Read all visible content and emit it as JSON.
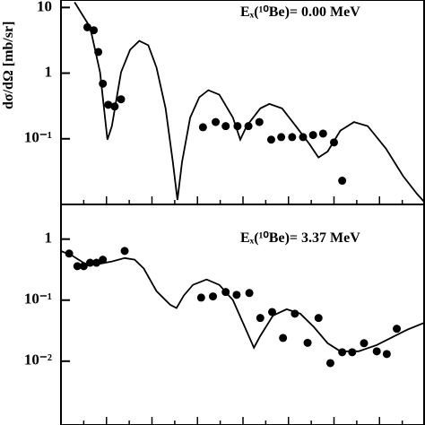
{
  "y_label": "dσ/dΩ [mb/sr]",
  "chart_data": [
    {
      "type": "scatter",
      "log_y": true,
      "color": "#000000",
      "annotation": "Eₓ(¹⁰Be)= 0.00 MeV",
      "xlim": [
        0,
        40
      ],
      "xticks": [
        0,
        2.5,
        5,
        7.5,
        10,
        12.5,
        15,
        17.5,
        20,
        22.5,
        25,
        27.5,
        30,
        32.5,
        35,
        37.5,
        40
      ],
      "ylim": [
        0.01,
        13
      ],
      "yticks": [
        {
          "value": 10,
          "label": "10"
        },
        {
          "value": 1,
          "label": "1"
        },
        {
          "value": 0.1,
          "label": "10⁻¹"
        }
      ],
      "x": [
        2.9,
        3.6,
        4.1,
        4.6,
        5.2,
        5.9,
        6.6,
        15.6,
        17.0,
        18.1,
        19.4,
        20.6,
        21.8,
        23.1,
        24.2,
        25.4,
        26.6,
        27.7,
        28.8,
        30.0,
        30.9
      ],
      "values": [
        5.0,
        4.5,
        2.1,
        0.69,
        0.33,
        0.31,
        0.4,
        0.15,
        0.18,
        0.156,
        0.156,
        0.156,
        0.18,
        0.097,
        0.106,
        0.106,
        0.106,
        0.114,
        0.12,
        0.088,
        0.023
      ],
      "fit_x": [
        1.5,
        3.2,
        4.3,
        5.1,
        5.6,
        6.6,
        7.6,
        8.6,
        9.6,
        10.5,
        11.5,
        12.3,
        12.8,
        13.3,
        14.2,
        15.2,
        16.2,
        17.4,
        18.9,
        19.7,
        20.4,
        21.9,
        22.9,
        24.3,
        25.8,
        27.3,
        28.3,
        29.3,
        30.7,
        32.2,
        33.7,
        35.7,
        37.6,
        39.1,
        40
      ],
      "fit_values": [
        12,
        5.0,
        1.03,
        0.097,
        0.156,
        1.03,
        2.27,
        3.1,
        2.66,
        1.21,
        0.29,
        0.044,
        0.0117,
        0.044,
        0.21,
        0.43,
        0.55,
        0.47,
        0.21,
        0.097,
        0.156,
        0.29,
        0.34,
        0.29,
        0.156,
        0.083,
        0.052,
        0.064,
        0.133,
        0.18,
        0.156,
        0.071,
        0.027,
        0.0146,
        0.0106
      ]
    },
    {
      "type": "scatter",
      "log_y": true,
      "color": "#000000",
      "annotation": "Eₓ(¹⁰Be)= 3.37 MeV",
      "xlim": [
        0,
        40
      ],
      "xticks": [
        0,
        2.5,
        5,
        7.5,
        10,
        12.5,
        15,
        17.5,
        20,
        22.5,
        25,
        27.5,
        30,
        32.5,
        35,
        37.5,
        40
      ],
      "ylim": [
        0.0009,
        3.7
      ],
      "yticks": [
        {
          "value": 1,
          "label": "1"
        },
        {
          "value": 0.1,
          "label": "10⁻¹"
        },
        {
          "value": 0.01,
          "label": "10⁻²"
        }
      ],
      "x": [
        0.9,
        1.8,
        2.5,
        3.2,
        3.9,
        4.6,
        7.0,
        15.4,
        16.7,
        18.1,
        19.3,
        20.7,
        21.9,
        23.2,
        24.4,
        25.7,
        27.1,
        28.3,
        29.6,
        30.9,
        32.0,
        33.3,
        34.7,
        35.8,
        36.9
      ],
      "values": [
        0.58,
        0.36,
        0.36,
        0.41,
        0.41,
        0.46,
        0.64,
        0.11,
        0.115,
        0.136,
        0.122,
        0.131,
        0.051,
        0.064,
        0.024,
        0.06,
        0.02,
        0.051,
        0.0093,
        0.014,
        0.014,
        0.0197,
        0.0145,
        0.0131,
        0.034
      ],
      "fit_x": [
        0,
        1.2,
        2.7,
        4.1,
        5.6,
        7.0,
        8.1,
        9.1,
        10.5,
        12.0,
        12.7,
        13.5,
        14.5,
        16.0,
        17.4,
        18.9,
        20.4,
        21.2,
        21.9,
        23.3,
        24.8,
        26.3,
        27.8,
        29.3,
        30.7,
        32.7,
        34.7,
        36.7,
        38.1,
        40
      ],
      "fit_values": [
        0.64,
        0.54,
        0.39,
        0.39,
        0.43,
        0.49,
        0.46,
        0.33,
        0.14,
        0.084,
        0.074,
        0.119,
        0.178,
        0.218,
        0.178,
        0.1,
        0.031,
        0.0166,
        0.026,
        0.056,
        0.071,
        0.06,
        0.036,
        0.0197,
        0.0145,
        0.0145,
        0.0184,
        0.026,
        0.033,
        0.043
      ]
    }
  ]
}
